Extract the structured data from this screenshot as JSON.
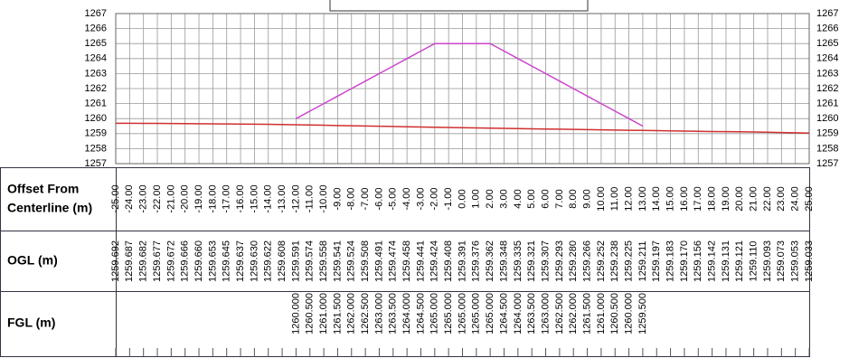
{
  "chart_data": {
    "type": "line",
    "x_label": "Offset From Centerline (m)",
    "x": [
      -25,
      -24,
      -23,
      -22,
      -21,
      -20,
      -19,
      -18,
      -17,
      -16,
      -15,
      -14,
      -13,
      -12,
      -11,
      -10,
      -9,
      -8,
      -7,
      -6,
      -5,
      -4,
      -3,
      -2,
      -1,
      0,
      1,
      2,
      3,
      4,
      5,
      6,
      7,
      8,
      9,
      10,
      11,
      12,
      13,
      14,
      15,
      16,
      17,
      18,
      19,
      20,
      21,
      22,
      23,
      24,
      25
    ],
    "x_labels": [
      "-25.00",
      "-24.00",
      "-23.00",
      "-22.00",
      "-21.00",
      "-20.00",
      "-19.00",
      "-18.00",
      "-17.00",
      "-16.00",
      "-15.00",
      "-14.00",
      "-13.00",
      "-12.00",
      "-11.00",
      "-10.00",
      "-9.00",
      "-8.00",
      "-7.00",
      "-6.00",
      "-5.00",
      "-4.00",
      "-3.00",
      "-2.00",
      "-1.00",
      "0.00",
      "1.00",
      "2.00",
      "3.00",
      "4.00",
      "5.00",
      "6.00",
      "7.00",
      "8.00",
      "9.00",
      "10.00",
      "11.00",
      "12.00",
      "13.00",
      "14.00",
      "15.00",
      "16.00",
      "17.00",
      "18.00",
      "19.00",
      "20.00",
      "21.00",
      "22.00",
      "23.00",
      "24.00",
      "25.00"
    ],
    "xlim": [
      -25,
      25
    ],
    "ylim": [
      1257,
      1267
    ],
    "yticks": [
      1257,
      1258,
      1259,
      1260,
      1261,
      1262,
      1263,
      1264,
      1265,
      1266,
      1267
    ],
    "grid": true,
    "series": [
      {
        "name": "OGL (m)",
        "color": "#d03030",
        "values": [
          1259.692,
          1259.687,
          1259.682,
          1259.677,
          1259.672,
          1259.666,
          1259.66,
          1259.653,
          1259.645,
          1259.637,
          1259.63,
          1259.622,
          1259.608,
          1259.591,
          1259.574,
          1259.558,
          1259.541,
          1259.524,
          1259.508,
          1259.491,
          1259.474,
          1259.458,
          1259.441,
          1259.424,
          1259.408,
          1259.391,
          1259.376,
          1259.362,
          1259.348,
          1259.335,
          1259.321,
          1259.307,
          1259.293,
          1259.28,
          1259.266,
          1259.252,
          1259.238,
          1259.225,
          1259.211,
          1259.197,
          1259.183,
          1259.17,
          1259.156,
          1259.142,
          1259.131,
          1259.121,
          1259.11,
          1259.093,
          1259.073,
          1259.053,
          1259.033
        ],
        "value_labels": [
          "1259.692",
          "1259.687",
          "1259.682",
          "1259.677",
          "1259.672",
          "1259.666",
          "1259.660",
          "1259.653",
          "1259.645",
          "1259.637",
          "1259.630",
          "1259.622",
          "1259.608",
          "1259.591",
          "1259.574",
          "1259.558",
          "1259.541",
          "1259.524",
          "1259.508",
          "1259.491",
          "1259.474",
          "1259.458",
          "1259.441",
          "1259.424",
          "1259.408",
          "1259.391",
          "1259.376",
          "1259.362",
          "1259.348",
          "1259.335",
          "1259.321",
          "1259.307",
          "1259.293",
          "1259.280",
          "1259.266",
          "1259.252",
          "1259.238",
          "1259.225",
          "1259.211",
          "1259.197",
          "1259.183",
          "1259.170",
          "1259.156",
          "1259.142",
          "1259.131",
          "1259.121",
          "1259.110",
          "1259.093",
          "1259.073",
          "1259.053",
          "1259.033"
        ]
      },
      {
        "name": "FGL (m)",
        "color": "#cc44cc",
        "values": [
          null,
          null,
          null,
          null,
          null,
          null,
          null,
          null,
          null,
          null,
          null,
          null,
          null,
          1260,
          1260.5,
          1261,
          1261.5,
          1262,
          1262.5,
          1263,
          1263.5,
          1264,
          1264.5,
          1265,
          1265,
          1265,
          1265,
          1265,
          1264.5,
          1264,
          1263.5,
          1263,
          1262.5,
          1262,
          1261.5,
          1261,
          1260.5,
          1260,
          1259.5,
          null,
          null,
          null,
          null,
          null,
          null,
          null,
          null,
          null,
          null,
          null,
          null
        ],
        "value_labels": [
          null,
          null,
          null,
          null,
          null,
          null,
          null,
          null,
          null,
          null,
          null,
          null,
          null,
          "1260.000",
          "1260.500",
          "1261.000",
          "1261.500",
          "1262.000",
          "1262.500",
          "1263.000",
          "1263.500",
          "1264.000",
          "1264.500",
          "1265.000",
          "1265.000",
          "1265.000",
          "1265.000",
          "1265.000",
          "1264.500",
          "1264.000",
          "1263.500",
          "1263.000",
          "1262.500",
          "1262.000",
          "1261.500",
          "1261.000",
          "1260.500",
          "1260.000",
          "1259.500",
          null,
          null,
          null,
          null,
          null,
          null,
          null,
          null,
          null,
          null,
          null,
          null
        ]
      }
    ]
  }
}
